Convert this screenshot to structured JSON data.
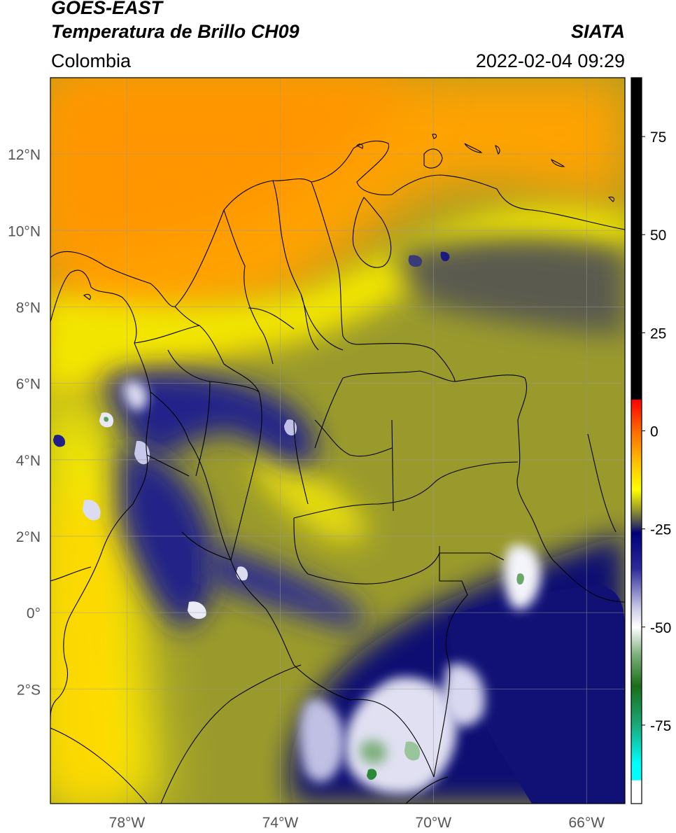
{
  "header": {
    "satellite": "GOES-EAST",
    "product": "Temperatura de Brillo CH09",
    "region": "Colombia",
    "agency": "SIATA",
    "datetime": "2022-02-04 09:29"
  },
  "map": {
    "lon_range": [
      -80,
      -65
    ],
    "lat_range": [
      -5,
      14
    ],
    "lat_ticks": [
      {
        "value": 12,
        "label": "12°N"
      },
      {
        "value": 10,
        "label": "10°N"
      },
      {
        "value": 8,
        "label": "8°N"
      },
      {
        "value": 6,
        "label": "6°N"
      },
      {
        "value": 4,
        "label": "4°N"
      },
      {
        "value": 2,
        "label": "2°N"
      },
      {
        "value": 0,
        "label": "0°"
      },
      {
        "value": -2,
        "label": "2°S"
      }
    ],
    "lon_ticks": [
      {
        "value": -78,
        "label": "78°W"
      },
      {
        "value": -74,
        "label": "74°W"
      },
      {
        "value": -70,
        "label": "70°W"
      },
      {
        "value": -66,
        "label": "66°W"
      }
    ],
    "grid": true
  },
  "colorbar": {
    "range": [
      -95,
      90
    ],
    "ticks": [
      {
        "value": 75,
        "label": "75"
      },
      {
        "value": 50,
        "label": "50"
      },
      {
        "value": 25,
        "label": "25"
      },
      {
        "value": 0,
        "label": "0"
      },
      {
        "value": -25,
        "label": "-25"
      },
      {
        "value": -50,
        "label": "-50"
      },
      {
        "value": -75,
        "label": "-75"
      }
    ],
    "stops": [
      {
        "value": 90,
        "color": "#000000"
      },
      {
        "value": 8,
        "color": "#000000"
      },
      {
        "value": 7.9,
        "color": "#ff0000"
      },
      {
        "value": 0,
        "color": "#ff6a00"
      },
      {
        "value": -8,
        "color": "#ffc000"
      },
      {
        "value": -15,
        "color": "#ffff00"
      },
      {
        "value": -20,
        "color": "#9a9a2a"
      },
      {
        "value": -24,
        "color": "#3c3c5c"
      },
      {
        "value": -26,
        "color": "#00007a"
      },
      {
        "value": -35,
        "color": "#2a2a9a"
      },
      {
        "value": -45,
        "color": "#c8c8e6"
      },
      {
        "value": -50,
        "color": "#ffffff"
      },
      {
        "value": -57,
        "color": "#7fb07f"
      },
      {
        "value": -65,
        "color": "#1a6e1a"
      },
      {
        "value": -75,
        "color": "#1aaa7a"
      },
      {
        "value": -85,
        "color": "#00ffff"
      },
      {
        "value": -89,
        "color": "#00ffff"
      },
      {
        "value": -89.1,
        "color": "#ffffff"
      },
      {
        "value": -95,
        "color": "#ffffff"
      }
    ]
  }
}
